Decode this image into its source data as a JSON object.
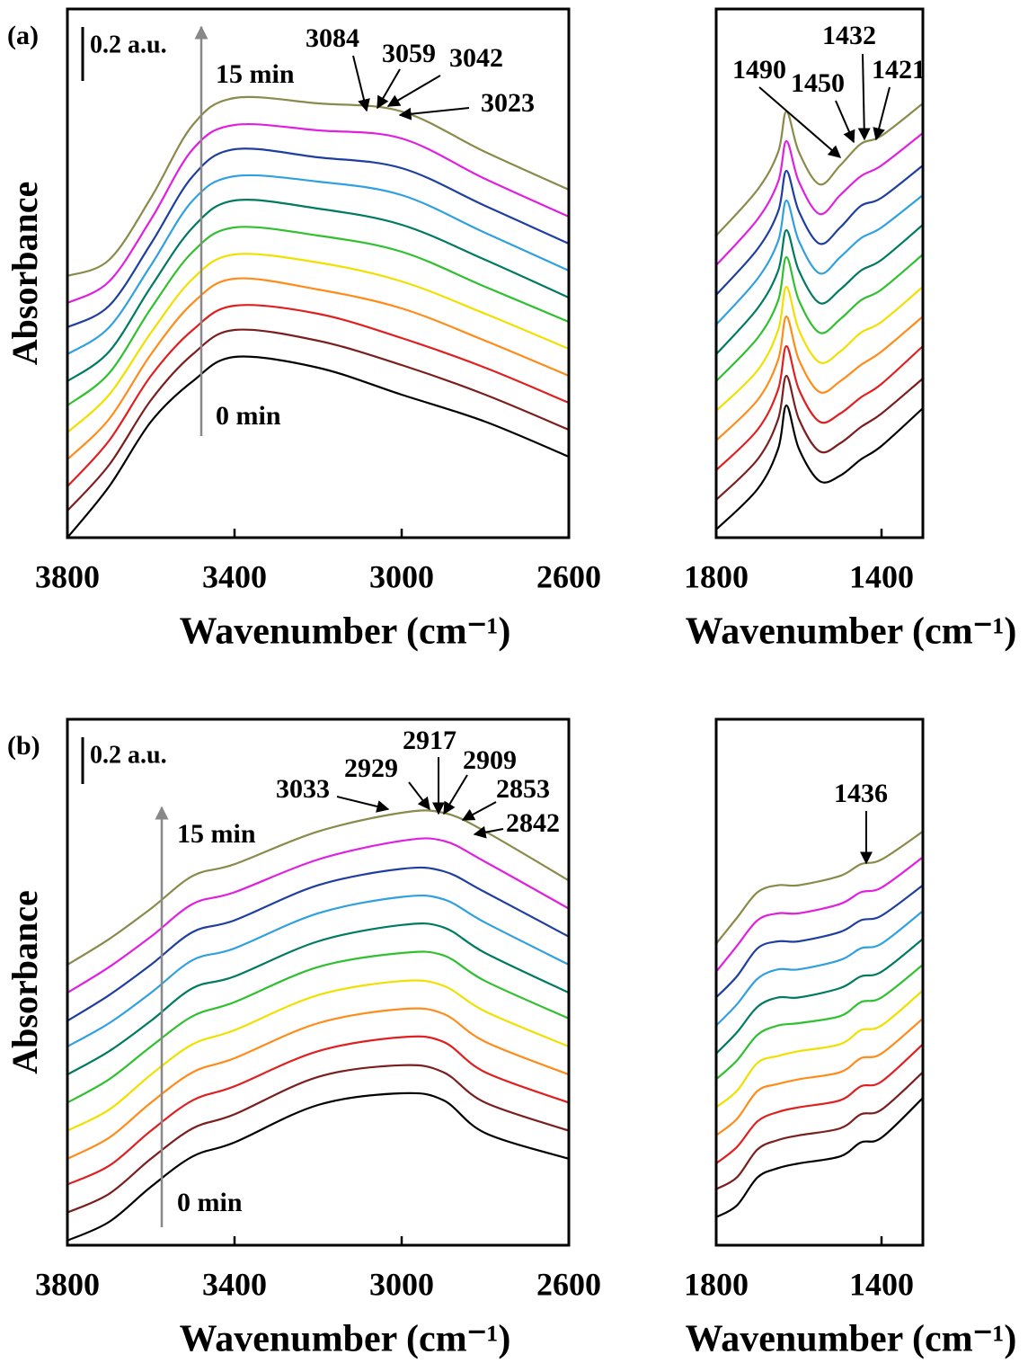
{
  "chart_data": [
    {
      "type": "line",
      "panel_label": "(a)",
      "ylabel": "Absorbance",
      "xlabel": "Wavenumber (cm⁻¹)",
      "xlim": [
        3800,
        2600
      ],
      "xticks": [
        3800,
        3400,
        3000,
        2600
      ],
      "ylim": [
        0,
        1.96
      ],
      "scale_bar": {
        "value": 0.2,
        "label": "0.2 a.u."
      },
      "time_labels": [
        "15 min",
        "0 min"
      ],
      "annotations": [
        "3084",
        "3059",
        "3042",
        "3023"
      ],
      "x": [
        3800,
        3700,
        3600,
        3500,
        3400,
        3200,
        3000,
        2800,
        2600
      ],
      "series": [
        {
          "color": "#000000",
          "values": [
            0,
            0.19,
            0.43,
            0.58,
            0.67,
            0.63,
            0.53,
            0.43,
            0.3
          ]
        },
        {
          "color": "#7b1e1e",
          "values": [
            0.1,
            0.27,
            0.51,
            0.68,
            0.77,
            0.73,
            0.64,
            0.53,
            0.4
          ]
        },
        {
          "color": "#e02020",
          "values": [
            0.19,
            0.36,
            0.6,
            0.77,
            0.86,
            0.83,
            0.74,
            0.63,
            0.5
          ]
        },
        {
          "color": "#ff8c1a",
          "values": [
            0.29,
            0.44,
            0.68,
            0.87,
            0.96,
            0.92,
            0.85,
            0.73,
            0.6
          ]
        },
        {
          "color": "#f0e000",
          "values": [
            0.39,
            0.53,
            0.76,
            0.96,
            1.05,
            1.02,
            0.95,
            0.83,
            0.7
          ]
        },
        {
          "color": "#30c030",
          "values": [
            0.49,
            0.61,
            0.85,
            1.06,
            1.15,
            1.12,
            1.06,
            0.93,
            0.8
          ]
        },
        {
          "color": "#007a60",
          "values": [
            0.58,
            0.69,
            0.93,
            1.15,
            1.25,
            1.22,
            1.16,
            1.03,
            0.89
          ]
        },
        {
          "color": "#30a0e0",
          "values": [
            0.68,
            0.78,
            1.01,
            1.25,
            1.34,
            1.32,
            1.27,
            1.13,
            0.99
          ]
        },
        {
          "color": "#1f3fa0",
          "values": [
            0.78,
            0.86,
            1.09,
            1.34,
            1.44,
            1.41,
            1.37,
            1.23,
            1.09
          ]
        },
        {
          "color": "#e020e0",
          "values": [
            0.87,
            0.95,
            1.18,
            1.44,
            1.53,
            1.51,
            1.48,
            1.33,
            1.19
          ]
        },
        {
          "color": "#8a8a4a",
          "values": [
            0.97,
            1.03,
            1.26,
            1.53,
            1.63,
            1.61,
            1.58,
            1.43,
            1.29
          ]
        }
      ]
    },
    {
      "type": "line",
      "xlabel": "Wavenumber (cm⁻¹)",
      "xlim": [
        1800,
        1300
      ],
      "xticks": [
        1800,
        1400
      ],
      "ylim": [
        0,
        1.96
      ],
      "annotations": [
        "1490",
        "1450",
        "1432",
        "1421"
      ],
      "x": [
        1800,
        1700,
        1650,
        1630,
        1600,
        1550,
        1500,
        1450,
        1400,
        1300
      ],
      "series": [
        {
          "color": "#000000",
          "values": [
            0.03,
            0.18,
            0.33,
            0.49,
            0.33,
            0.21,
            0.23,
            0.29,
            0.34,
            0.48
          ]
        },
        {
          "color": "#7b1e1e",
          "values": [
            0.14,
            0.29,
            0.44,
            0.6,
            0.44,
            0.32,
            0.35,
            0.41,
            0.46,
            0.59
          ]
        },
        {
          "color": "#e02020",
          "values": [
            0.25,
            0.4,
            0.55,
            0.71,
            0.55,
            0.43,
            0.46,
            0.52,
            0.57,
            0.71
          ]
        },
        {
          "color": "#ff8c1a",
          "values": [
            0.36,
            0.51,
            0.66,
            0.82,
            0.66,
            0.54,
            0.58,
            0.64,
            0.69,
            0.82
          ]
        },
        {
          "color": "#f0e000",
          "values": [
            0.47,
            0.62,
            0.77,
            0.93,
            0.77,
            0.65,
            0.69,
            0.76,
            0.8,
            0.93
          ]
        },
        {
          "color": "#30c030",
          "values": [
            0.58,
            0.74,
            0.88,
            1.04,
            0.88,
            0.76,
            0.81,
            0.88,
            0.92,
            1.05
          ]
        },
        {
          "color": "#007a60",
          "values": [
            0.68,
            0.85,
            0.99,
            1.14,
            0.99,
            0.87,
            0.92,
            0.99,
            1.03,
            1.16
          ]
        },
        {
          "color": "#30a0e0",
          "values": [
            0.79,
            0.96,
            1.1,
            1.25,
            1.1,
            0.98,
            1.04,
            1.11,
            1.15,
            1.27
          ]
        },
        {
          "color": "#1f3fa0",
          "values": [
            0.9,
            1.07,
            1.21,
            1.36,
            1.21,
            1.09,
            1.15,
            1.23,
            1.26,
            1.38
          ]
        },
        {
          "color": "#e020e0",
          "values": [
            1.01,
            1.18,
            1.32,
            1.47,
            1.32,
            1.2,
            1.27,
            1.34,
            1.38,
            1.5
          ]
        },
        {
          "color": "#8a8a4a",
          "values": [
            1.12,
            1.29,
            1.43,
            1.58,
            1.43,
            1.31,
            1.38,
            1.46,
            1.49,
            1.61
          ]
        }
      ]
    },
    {
      "type": "line",
      "panel_label": "(b)",
      "ylabel": "Absorbance",
      "xlabel": "Wavenumber (cm⁻¹)",
      "xlim": [
        3800,
        2600
      ],
      "xticks": [
        3800,
        3400,
        3000,
        2600
      ],
      "ylim": [
        0,
        2.25
      ],
      "scale_bar": {
        "value": 0.2,
        "label": "0.2 a.u."
      },
      "time_labels": [
        "15 min",
        "0 min"
      ],
      "annotations": [
        "2917",
        "2929",
        "2909",
        "3033",
        "2853",
        "2842"
      ],
      "x": [
        3800,
        3700,
        3600,
        3500,
        3400,
        3200,
        3000,
        2900,
        2800,
        2600
      ],
      "series": [
        {
          "color": "#000000",
          "values": [
            0.02,
            0.1,
            0.25,
            0.38,
            0.44,
            0.6,
            0.65,
            0.62,
            0.48,
            0.37
          ]
        },
        {
          "color": "#7b1e1e",
          "values": [
            0.14,
            0.22,
            0.37,
            0.5,
            0.56,
            0.72,
            0.77,
            0.74,
            0.61,
            0.49
          ]
        },
        {
          "color": "#e02020",
          "values": [
            0.26,
            0.34,
            0.49,
            0.62,
            0.68,
            0.83,
            0.89,
            0.87,
            0.74,
            0.61
          ]
        },
        {
          "color": "#ff8c1a",
          "values": [
            0.37,
            0.46,
            0.61,
            0.74,
            0.8,
            0.95,
            1.01,
            0.99,
            0.87,
            0.73
          ]
        },
        {
          "color": "#f0e000",
          "values": [
            0.49,
            0.58,
            0.73,
            0.86,
            0.92,
            1.07,
            1.13,
            1.11,
            1.0,
            0.85
          ]
        },
        {
          "color": "#30c030",
          "values": [
            0.61,
            0.71,
            0.85,
            0.98,
            1.04,
            1.19,
            1.25,
            1.24,
            1.13,
            0.97
          ]
        },
        {
          "color": "#007a60",
          "values": [
            0.73,
            0.83,
            0.96,
            1.1,
            1.15,
            1.3,
            1.37,
            1.36,
            1.25,
            1.08
          ]
        },
        {
          "color": "#30a0e0",
          "values": [
            0.85,
            0.95,
            1.08,
            1.22,
            1.27,
            1.42,
            1.49,
            1.48,
            1.38,
            1.2
          ]
        },
        {
          "color": "#1f3fa0",
          "values": [
            0.96,
            1.07,
            1.2,
            1.34,
            1.39,
            1.54,
            1.61,
            1.6,
            1.51,
            1.32
          ]
        },
        {
          "color": "#e020e0",
          "values": [
            1.08,
            1.19,
            1.32,
            1.46,
            1.51,
            1.65,
            1.73,
            1.73,
            1.64,
            1.44
          ]
        },
        {
          "color": "#8a8a4a",
          "values": [
            1.2,
            1.31,
            1.44,
            1.58,
            1.63,
            1.77,
            1.85,
            1.85,
            1.77,
            1.56
          ]
        }
      ]
    },
    {
      "type": "line",
      "xlabel": "Wavenumber (cm⁻¹)",
      "xlim": [
        1800,
        1300
      ],
      "xticks": [
        1800,
        1400
      ],
      "ylim": [
        0,
        2.25
      ],
      "annotations": [
        "1436"
      ],
      "x": [
        1800,
        1750,
        1700,
        1650,
        1600,
        1500,
        1450,
        1400,
        1300
      ],
      "series": [
        {
          "color": "#000000",
          "values": [
            0.12,
            0.17,
            0.29,
            0.33,
            0.35,
            0.38,
            0.44,
            0.46,
            0.63
          ]
        },
        {
          "color": "#7b1e1e",
          "values": [
            0.24,
            0.29,
            0.41,
            0.45,
            0.47,
            0.5,
            0.56,
            0.58,
            0.74
          ]
        },
        {
          "color": "#e02020",
          "values": [
            0.35,
            0.42,
            0.53,
            0.57,
            0.59,
            0.62,
            0.68,
            0.7,
            0.86
          ]
        },
        {
          "color": "#ff8c1a",
          "values": [
            0.47,
            0.54,
            0.66,
            0.69,
            0.71,
            0.74,
            0.8,
            0.82,
            0.97
          ]
        },
        {
          "color": "#f0e000",
          "values": [
            0.59,
            0.66,
            0.78,
            0.81,
            0.83,
            0.86,
            0.92,
            0.94,
            1.09
          ]
        },
        {
          "color": "#30c030",
          "values": [
            0.71,
            0.79,
            0.9,
            0.94,
            0.95,
            0.98,
            1.04,
            1.06,
            1.2
          ]
        },
        {
          "color": "#007a60",
          "values": [
            0.82,
            0.91,
            1.02,
            1.06,
            1.06,
            1.1,
            1.15,
            1.17,
            1.31
          ]
        },
        {
          "color": "#30a0e0",
          "values": [
            0.94,
            1.03,
            1.14,
            1.18,
            1.18,
            1.22,
            1.27,
            1.29,
            1.43
          ]
        },
        {
          "color": "#1f3fa0",
          "values": [
            1.06,
            1.15,
            1.27,
            1.3,
            1.3,
            1.34,
            1.39,
            1.41,
            1.54
          ]
        },
        {
          "color": "#e020e0",
          "values": [
            1.17,
            1.28,
            1.39,
            1.42,
            1.42,
            1.46,
            1.51,
            1.53,
            1.66
          ]
        },
        {
          "color": "#8a8a4a",
          "values": [
            1.29,
            1.4,
            1.51,
            1.54,
            1.54,
            1.58,
            1.63,
            1.65,
            1.77
          ]
        }
      ]
    }
  ]
}
